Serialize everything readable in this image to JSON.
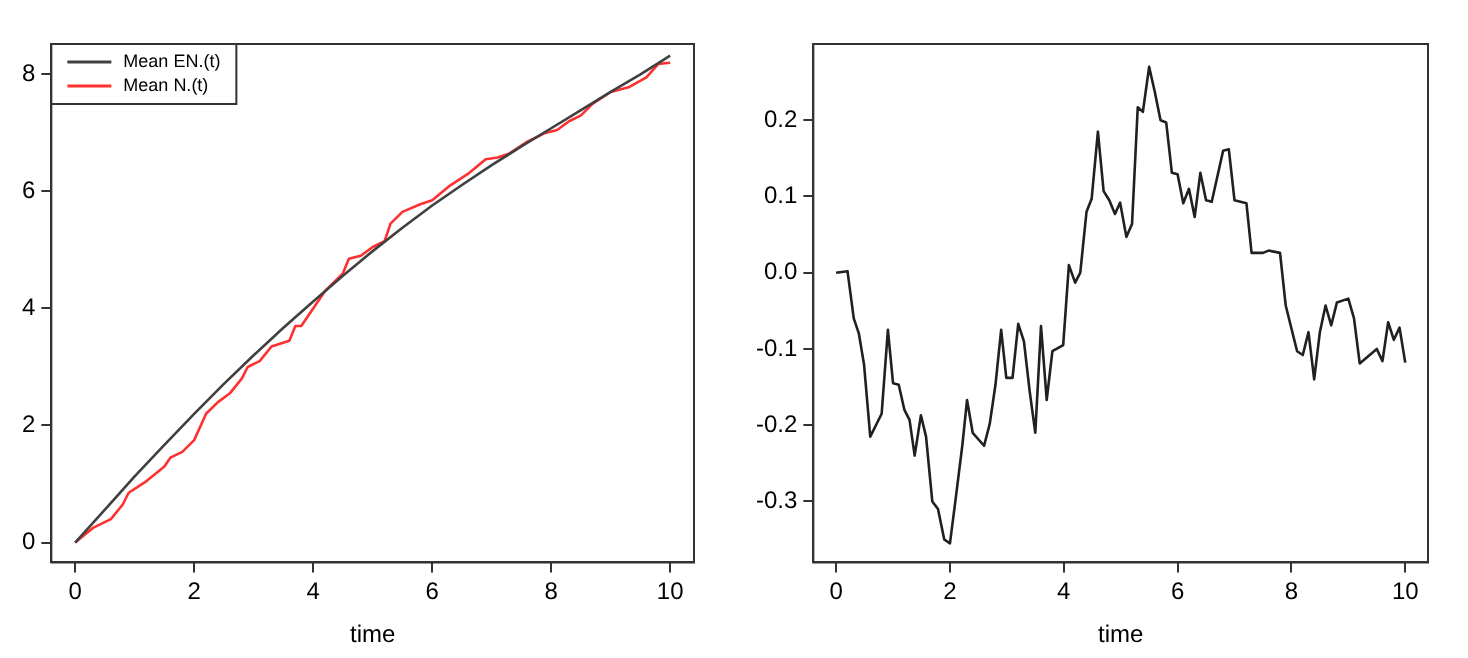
{
  "chart_data": [
    {
      "type": "line",
      "xlabel": "time",
      "xlim": [
        -0.4,
        10.4
      ],
      "xticks": [
        0,
        2,
        4,
        6,
        8,
        10
      ],
      "ylim": [
        -0.34,
        8.52
      ],
      "yticks": [
        0,
        2,
        4,
        6,
        8
      ],
      "grid": false,
      "legend": "top left",
      "marker": "none",
      "series": [
        {
          "name": "Mean EN.(t)",
          "color": "#404040",
          "x": [
            0,
            0.5,
            1,
            1.5,
            2,
            2.5,
            3,
            3.5,
            4,
            4.5,
            5,
            5.5,
            6,
            6.5,
            7,
            7.5,
            8,
            8.5,
            9,
            9.5,
            10
          ],
          "values": [
            0,
            0.56,
            1.13,
            1.67,
            2.2,
            2.71,
            3.2,
            3.67,
            4.12,
            4.56,
            4.98,
            5.38,
            5.76,
            6.11,
            6.45,
            6.77,
            7.08,
            7.39,
            7.7,
            8.0,
            8.32
          ]
        },
        {
          "name": "Mean N.(t)",
          "color": "#ff3030",
          "x": [
            0,
            0.3,
            0.6,
            0.8,
            0.9,
            1.2,
            1.5,
            1.6,
            1.8,
            2.0,
            2.2,
            2.4,
            2.6,
            2.8,
            2.9,
            3.1,
            3.3,
            3.6,
            3.7,
            3.8,
            4.0,
            4.2,
            4.5,
            4.6,
            4.8,
            5.0,
            5.2,
            5.3,
            5.5,
            5.8,
            6.0,
            6.3,
            6.6,
            6.9,
            7.1,
            7.3,
            7.6,
            7.9,
            8.1,
            8.3,
            8.5,
            8.7,
            9.0,
            9.3,
            9.6,
            9.8,
            10
          ],
          "values": [
            0,
            0.25,
            0.4,
            0.65,
            0.85,
            1.05,
            1.3,
            1.45,
            1.55,
            1.75,
            2.2,
            2.4,
            2.55,
            2.8,
            3.0,
            3.1,
            3.35,
            3.45,
            3.7,
            3.7,
            4.0,
            4.3,
            4.6,
            4.85,
            4.9,
            5.05,
            5.15,
            5.45,
            5.65,
            5.78,
            5.85,
            6.1,
            6.3,
            6.55,
            6.58,
            6.65,
            6.85,
            7.0,
            7.05,
            7.2,
            7.3,
            7.5,
            7.7,
            7.78,
            7.95,
            8.18,
            8.2
          ]
        }
      ]
    },
    {
      "type": "line",
      "xlabel": "time",
      "xlim": [
        -0.4,
        10.4
      ],
      "xticks": [
        0,
        2,
        4,
        6,
        8,
        10
      ],
      "ylim": [
        -0.38,
        0.3
      ],
      "yticks": [
        {
          "value": -0.3,
          "label": "-0.3"
        },
        {
          "value": -0.2,
          "label": "-0.2"
        },
        {
          "value": -0.1,
          "label": "-0.1"
        },
        {
          "value": 0,
          "label": "0.0"
        },
        {
          "value": 0.1,
          "label": "0.1"
        },
        {
          "value": 0.2,
          "label": "0.2"
        }
      ],
      "grid": false,
      "legend": false,
      "marker": "none",
      "series": [
        {
          "color": "#202020",
          "x": [
            0,
            0.2,
            0.31,
            0.4,
            0.49,
            0.6,
            0.8,
            0.91,
            1.0,
            1.1,
            1.2,
            1.29,
            1.38,
            1.49,
            1.58,
            1.69,
            1.79,
            1.9,
            2.0,
            2.1,
            2.22,
            2.3,
            2.4,
            2.6,
            2.7,
            2.8,
            2.9,
            2.99,
            3.1,
            3.2,
            3.3,
            3.4,
            3.5,
            3.6,
            3.7,
            3.8,
            3.99,
            4.09,
            4.2,
            4.29,
            4.4,
            4.49,
            4.6,
            4.7,
            4.8,
            4.9,
            4.99,
            5.1,
            5.2,
            5.3,
            5.39,
            5.5,
            5.6,
            5.7,
            5.8,
            5.9,
            6.0,
            6.1,
            6.2,
            6.3,
            6.4,
            6.5,
            6.6,
            6.8,
            6.9,
            7.0,
            7.21,
            7.3,
            7.5,
            7.6,
            7.8,
            7.9,
            8.1,
            8.2,
            8.3,
            8.4,
            8.5,
            8.6,
            8.7,
            8.8,
            9.0,
            9.1,
            9.2,
            9.5,
            9.6,
            9.7,
            9.8,
            9.9,
            10
          ],
          "values": [
            0,
            0.002,
            -0.06,
            -0.08,
            -0.12,
            -0.215,
            -0.185,
            -0.075,
            -0.145,
            -0.147,
            -0.18,
            -0.193,
            -0.24,
            -0.187,
            -0.215,
            -0.3,
            -0.31,
            -0.35,
            -0.355,
            -0.297,
            -0.225,
            -0.167,
            -0.21,
            -0.227,
            -0.198,
            -0.147,
            -0.075,
            -0.138,
            -0.138,
            -0.067,
            -0.09,
            -0.155,
            -0.21,
            -0.07,
            -0.167,
            -0.103,
            -0.095,
            0.01,
            -0.013,
            0,
            0.08,
            0.097,
            0.185,
            0.107,
            0.095,
            0.077,
            0.092,
            0.047,
            0.064,
            0.217,
            0.211,
            0.27,
            0.237,
            0.2,
            0.197,
            0.131,
            0.129,
            0.091,
            0.11,
            0.073,
            0.131,
            0.095,
            0.093,
            0.16,
            0.162,
            0.095,
            0.091,
            0.026,
            0.026,
            0.029,
            0.026,
            -0.043,
            -0.103,
            -0.108,
            -0.078,
            -0.14,
            -0.078,
            -0.043,
            -0.069,
            -0.039,
            -0.034,
            -0.06,
            -0.119,
            -0.1,
            -0.116,
            -0.065,
            -0.088,
            -0.072,
            -0.118
          ]
        }
      ]
    }
  ]
}
